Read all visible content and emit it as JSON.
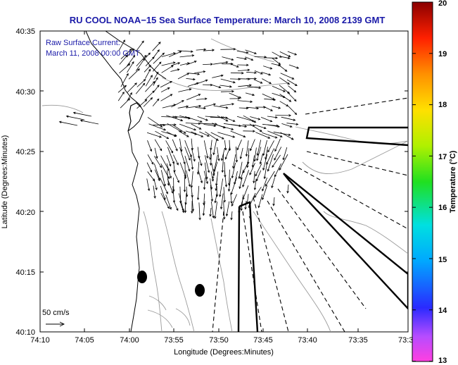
{
  "title": "RU COOL  NOAA−15  Sea Surface Temperature:  March 10, 2008 2139 GMT",
  "inset": {
    "line1": "Raw Surface Current:",
    "line2": "March 11, 2008 00:00 GMT"
  },
  "scale": {
    "label": "50 cm/s",
    "speed_cm_s": 50
  },
  "axes": {
    "xlabel": "Longitude (Degrees:Minutes)",
    "ylabel": "Latitude (Degrees:Minutes)",
    "x_ticks": [
      "74:10",
      "74:05",
      "74:00",
      "73:55",
      "73:50",
      "73:45",
      "73:40",
      "73:35",
      "73:3"
    ],
    "y_ticks": [
      "40:35",
      "40:30",
      "40:25",
      "40:20",
      "40:15",
      "40:10"
    ]
  },
  "colorbar": {
    "label": "Temperature (°C)",
    "min": 13,
    "max": 20,
    "ticks": [
      "20",
      "19",
      "18",
      "17",
      "16",
      "15",
      "14",
      "13"
    ]
  },
  "colors": {
    "title": "#1a1aa8",
    "land": "#ffffff",
    "water": "#ffffff"
  }
}
